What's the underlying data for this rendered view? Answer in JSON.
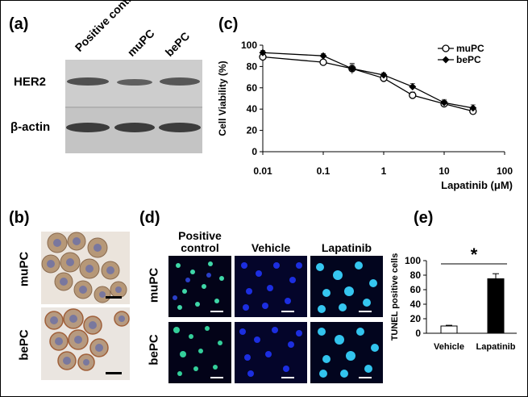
{
  "panels": {
    "a": {
      "label": "(a)",
      "lanes": [
        "Positive control",
        "muPC",
        "bePC"
      ],
      "rows": [
        "HER2",
        "β-actin"
      ]
    },
    "b": {
      "label": "(b)",
      "rows": [
        "muPC",
        "bePC"
      ]
    },
    "c": {
      "label": "(c)"
    },
    "d": {
      "label": "(d)",
      "columns": [
        "Positive control",
        "Vehicle",
        "Lapatinib"
      ],
      "rows": [
        "muPC",
        "bePC"
      ]
    },
    "e": {
      "label": "(e)"
    }
  },
  "chart_data": [
    {
      "type": "line",
      "panel": "c",
      "xscale": "log",
      "x": [
        0.01,
        0.1,
        0.3,
        1,
        3,
        10,
        30
      ],
      "xticks": [
        "0.01",
        "0.1",
        "1",
        "10",
        "100"
      ],
      "xlabel": "Lapatinib (μM)",
      "ylabel": "Cell Viability (%)",
      "ylim": [
        0,
        100
      ],
      "yticks": [
        "0",
        "20",
        "40",
        "60",
        "80",
        "100"
      ],
      "legend": "top-right",
      "series": [
        {
          "name": "muPC",
          "marker": "open-circle",
          "values": [
            89,
            84,
            78,
            69,
            53,
            45,
            38
          ],
          "errors": [
            2,
            2,
            5,
            3,
            3,
            3,
            3
          ]
        },
        {
          "name": "bePC",
          "marker": "filled-diamond",
          "values": [
            93,
            90,
            78,
            72,
            61,
            46,
            41
          ],
          "errors": [
            2,
            2,
            4,
            2,
            3,
            3,
            3
          ]
        }
      ]
    },
    {
      "type": "bar",
      "panel": "e",
      "categories": [
        "Vehicle",
        "Lapatinib"
      ],
      "values": [
        10,
        75
      ],
      "errors": [
        1,
        7
      ],
      "colors": [
        "#ffffff",
        "#000000"
      ],
      "ylabel": "TUNEL positive cells",
      "ylim": [
        0,
        100
      ],
      "yticks": [
        "0",
        "20",
        "40",
        "60",
        "80",
        "100"
      ],
      "annotation": "*"
    }
  ]
}
